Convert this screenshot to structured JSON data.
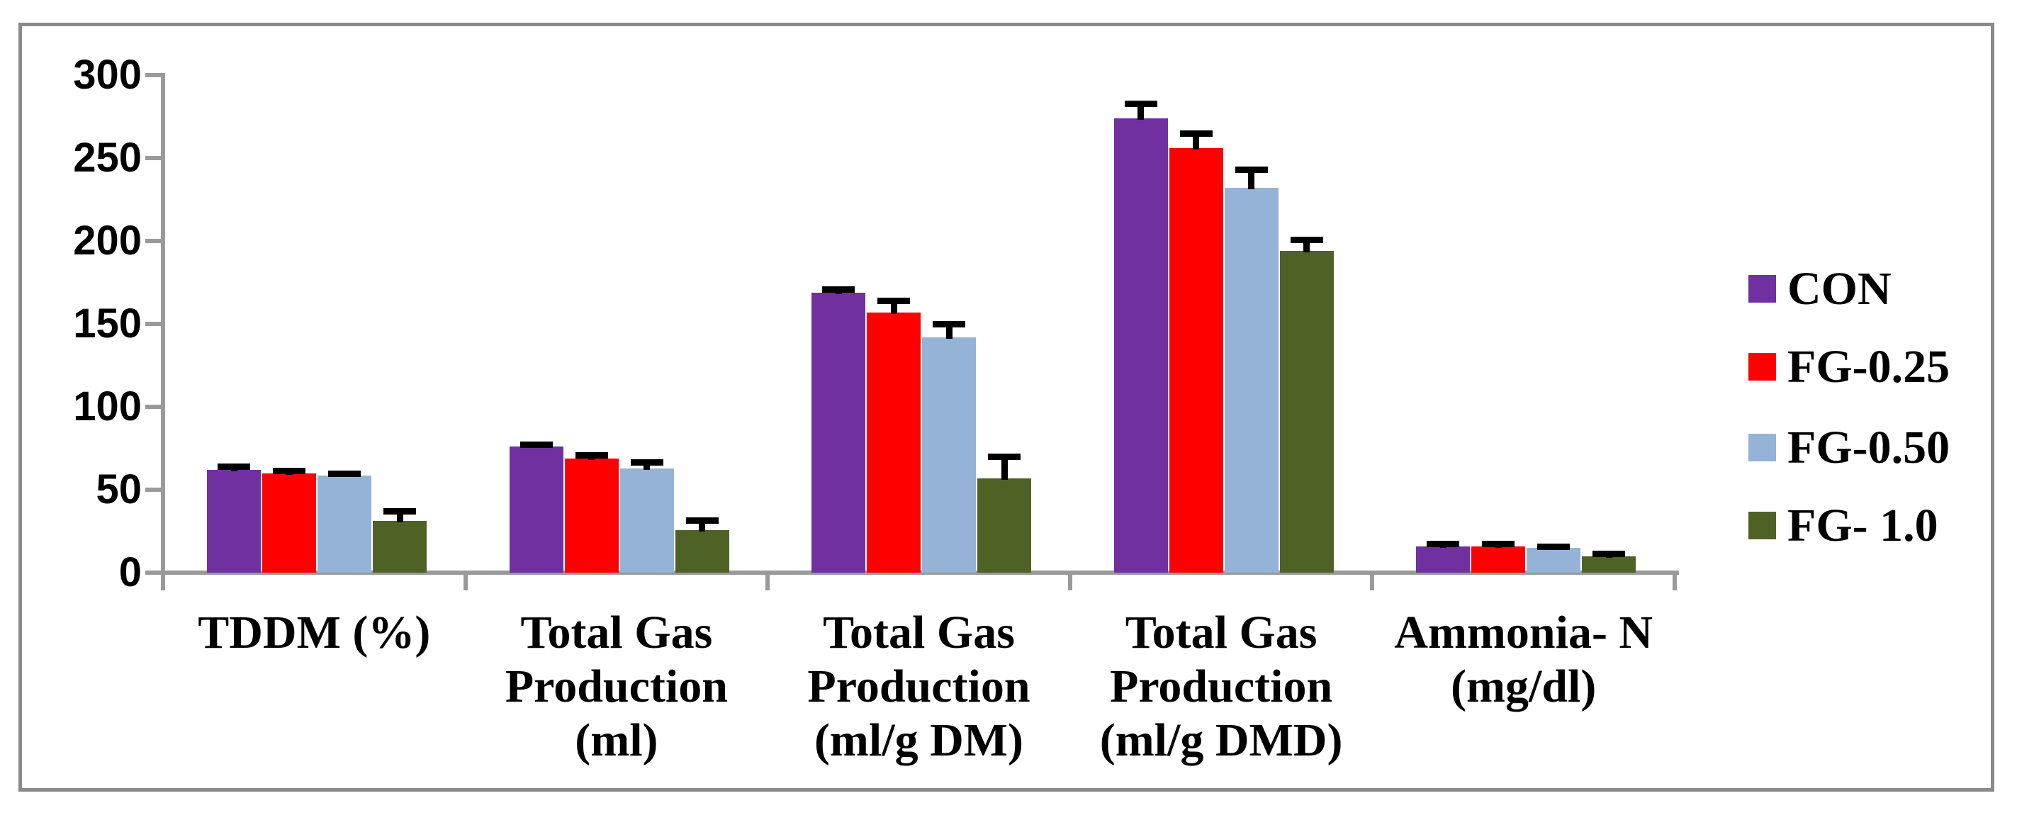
{
  "figure": {
    "background_color": "#FFFFFF",
    "border_color": "#8A8A8A"
  },
  "chart_data": {
    "type": "bar",
    "title": "",
    "xlabel": "",
    "ylabel": "",
    "grid": false,
    "error_bars": true,
    "legend_position": "right",
    "axis_color": "#9A9A9A",
    "error_bar_color": "#000000",
    "ylim": [
      0,
      300
    ],
    "ytick_step": 50,
    "ytick_labels": [
      "0",
      "50",
      "100",
      "150",
      "200",
      "250",
      "300"
    ],
    "categories": [
      "TDDM (%)",
      "Total Gas\nProduction\n(ml)",
      "Total Gas\nProduction\n(ml/g DM)",
      "Total Gas\nProduction\n(ml/g DMD)",
      "Ammonia- N\n(mg/dl)"
    ],
    "series": [
      {
        "name": "CON",
        "color": "#7030A0",
        "values": [
          62,
          76,
          169,
          274,
          16
        ],
        "errors": [
          2,
          1.5,
          2,
          9,
          1.5
        ]
      },
      {
        "name": "FG-0.25",
        "color": "#FF0000",
        "values": [
          60,
          69,
          157,
          256,
          16
        ],
        "errors": [
          1.5,
          2,
          7,
          9,
          1.5
        ]
      },
      {
        "name": "FG-0.50",
        "color": "#95B3D7",
        "values": [
          58.5,
          63,
          142,
          232,
          15
        ],
        "errors": [
          1.5,
          3.5,
          8,
          11,
          1
        ]
      },
      {
        "name": "FG- 1.0",
        "color": "#4F6226",
        "values": [
          31,
          25.5,
          57,
          194,
          10
        ],
        "errors": [
          6,
          6,
          13,
          7,
          1.5
        ]
      }
    ]
  }
}
